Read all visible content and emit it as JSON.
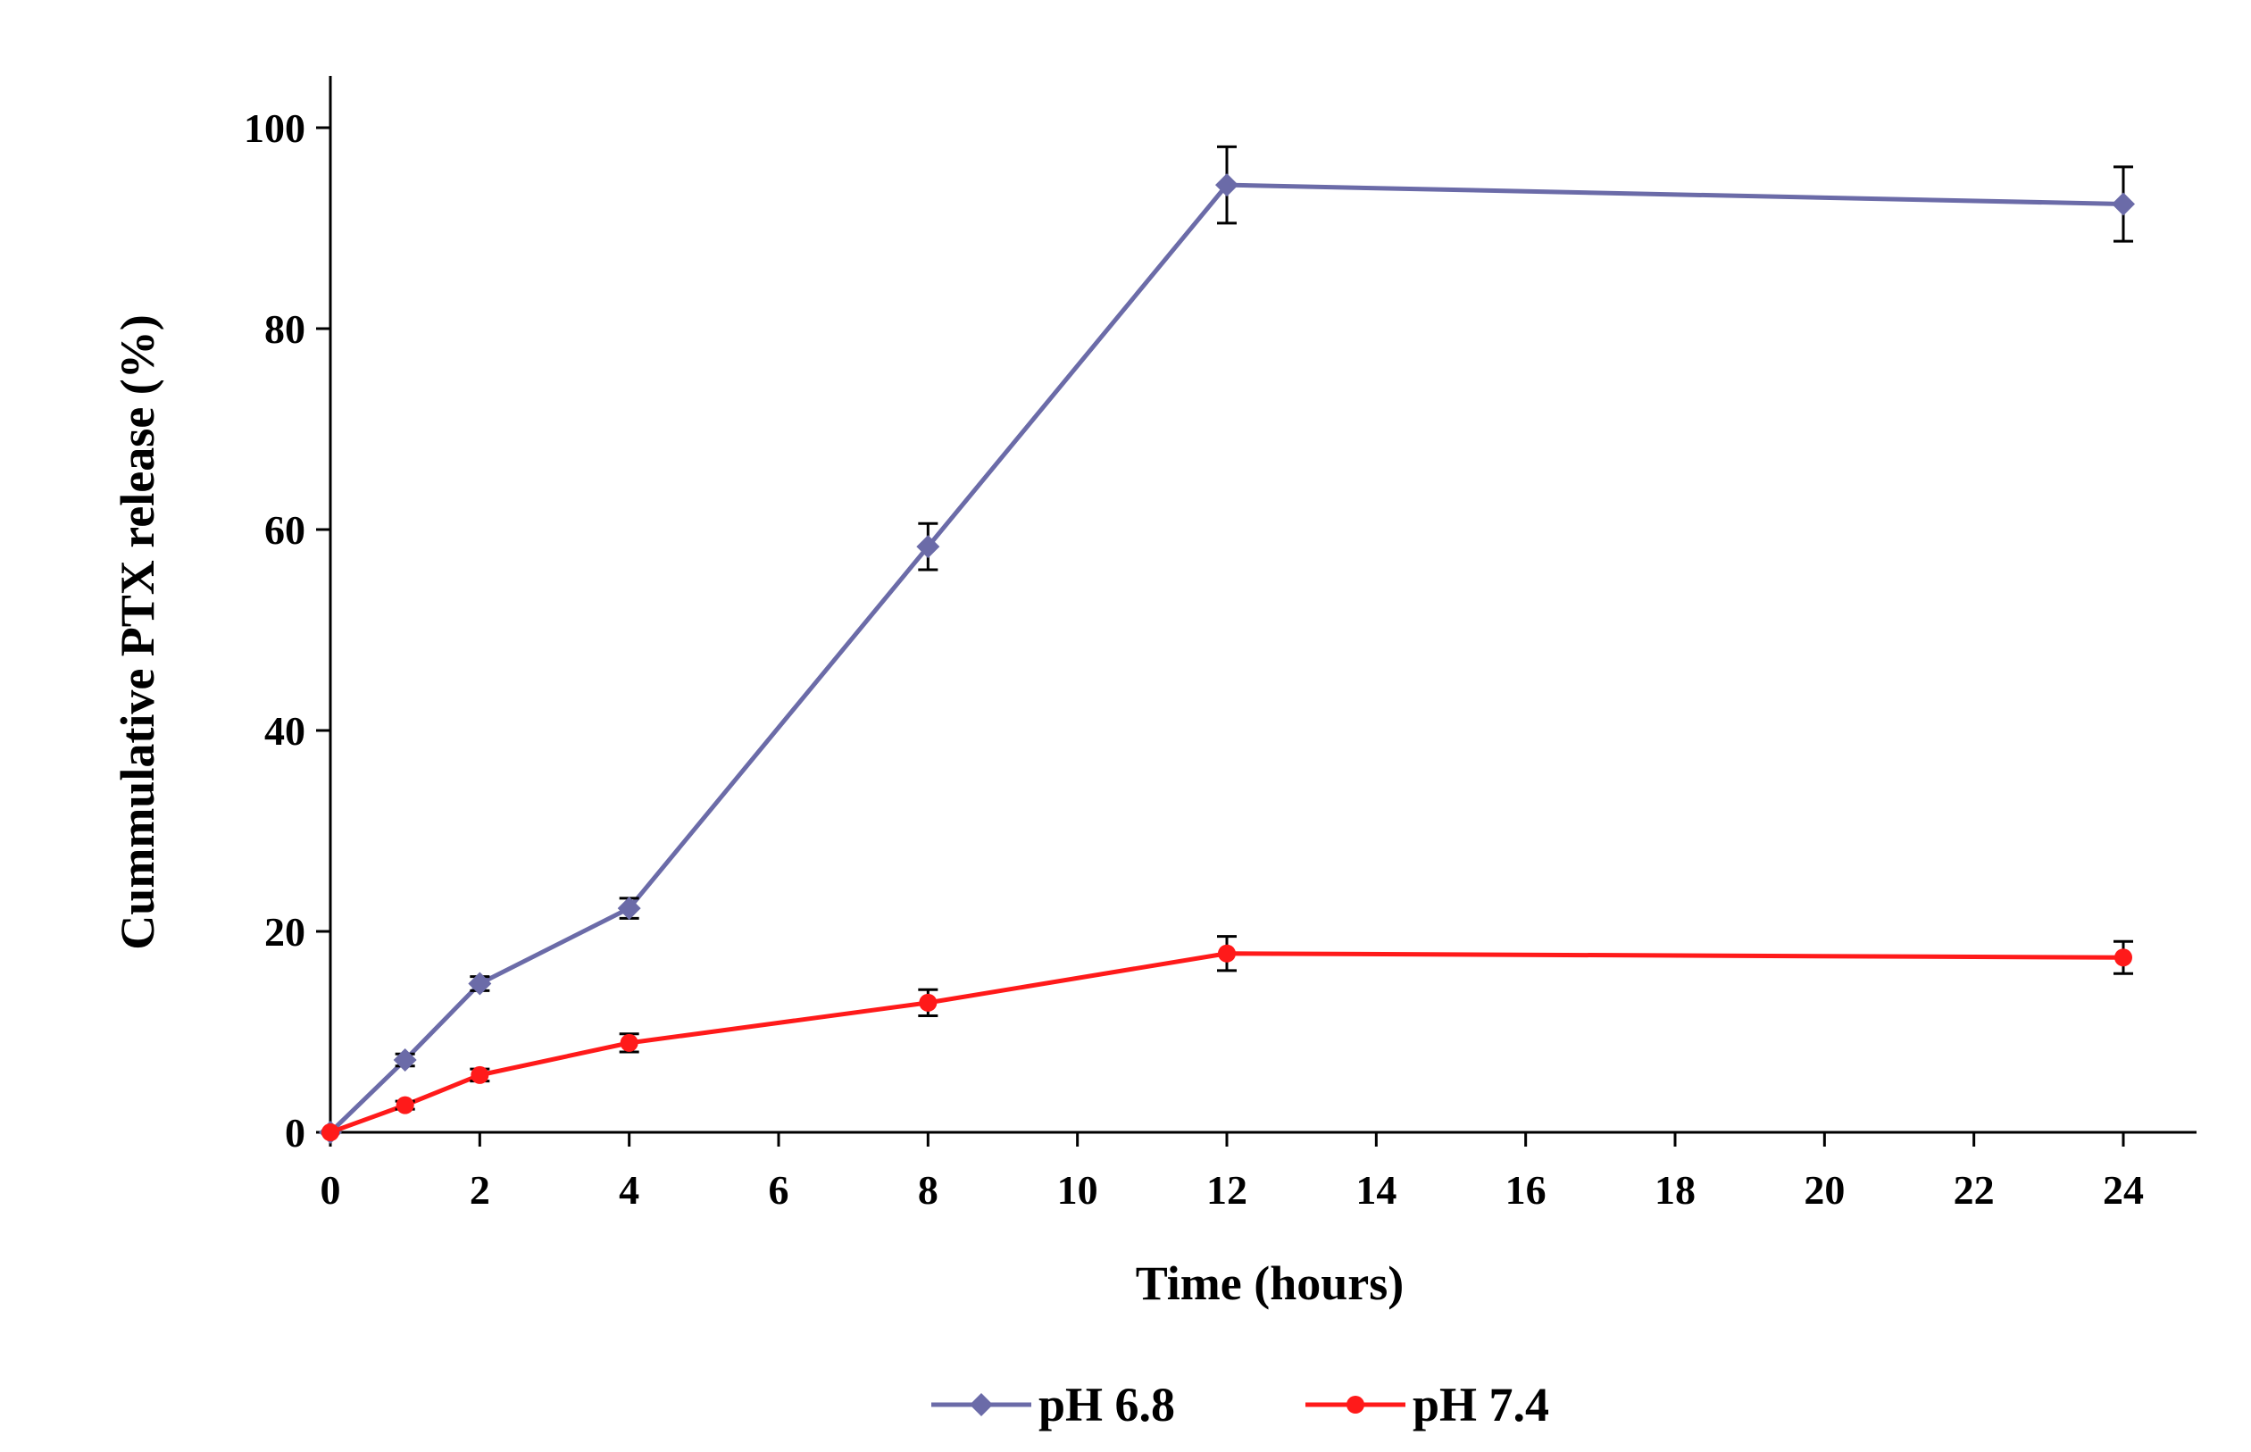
{
  "chart_data": {
    "type": "line",
    "title": "",
    "xlabel": "Time (hours)",
    "ylabel": "Cummulative PTX release (%)",
    "xlim": [
      0,
      25
    ],
    "ylim": [
      0,
      105
    ],
    "x_ticks": [
      0,
      2,
      4,
      6,
      8,
      10,
      12,
      14,
      16,
      18,
      20,
      22,
      24
    ],
    "y_ticks": [
      0,
      20,
      40,
      60,
      80,
      100
    ],
    "x_tick_labels": [
      "0",
      "2",
      "4",
      "6",
      "8",
      "10",
      "12",
      "14",
      "16",
      "18",
      "20",
      "22",
      "24"
    ],
    "y_tick_labels": [
      "0",
      "20",
      "40",
      "60",
      "80",
      "100"
    ],
    "grid": false,
    "legend_position": "bottom-center",
    "x": [
      0,
      1,
      2,
      4,
      8,
      12,
      24
    ],
    "series": [
      {
        "name": "pH 6.8",
        "color": "#6b6ba8",
        "marker": "diamond",
        "values": [
          0,
          7.2,
          14.8,
          22.3,
          58.3,
          94.3,
          92.4
        ],
        "errors": [
          0,
          0.6,
          0.7,
          1.0,
          2.3,
          3.8,
          3.7
        ]
      },
      {
        "name": "pH 7.4",
        "color": "#ff1a1a",
        "marker": "circle",
        "values": [
          0,
          2.7,
          5.7,
          8.9,
          12.9,
          17.8,
          17.4
        ],
        "errors": [
          0,
          0.4,
          0.6,
          0.9,
          1.3,
          1.7,
          1.6
        ]
      }
    ]
  }
}
